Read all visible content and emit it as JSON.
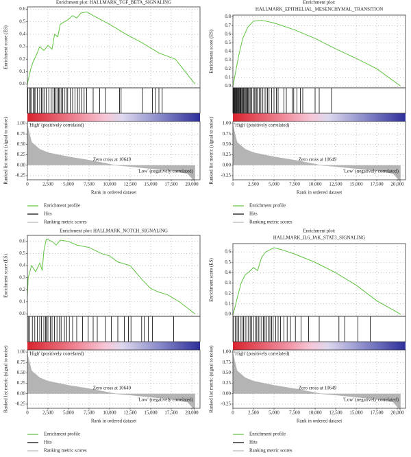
{
  "chart_data": [
    {
      "type": "gsea",
      "title": [
        "Enrichment plot: HALLMARK_TGF_BETA_SIGNALING"
      ],
      "ylabel": "Enrichment score (ES)",
      "y2label": "Ranked list metric (signal to noise)",
      "xlabel": "Rank in ordered dataset",
      "annotations": [
        "'High' (positively correlated)",
        "Zero cross at 10649",
        "'Low' (negatively correlated)"
      ],
      "xlim": [
        0,
        21000
      ],
      "xticks": [
        0,
        {
          "value": 2500,
          "label": "2,500"
        },
        {
          "value": 5000,
          "label": "5,000"
        },
        {
          "value": 7500,
          "label": "7,500"
        },
        {
          "value": 10000,
          "label": "10,000"
        },
        {
          "value": 12500,
          "label": "12,500"
        },
        {
          "value": 15000,
          "label": "15,000"
        },
        {
          "value": 17500,
          "label": "17,500"
        },
        {
          "value": 20000,
          "label": "20,000"
        }
      ],
      "ylim": [
        -0.03,
        0.62
      ],
      "yticks": [
        {
          "value": 0,
          "label": "0.0"
        },
        0.1,
        0.2,
        0.3,
        0.4,
        0.5,
        0.6
      ],
      "y2lim": [
        -0.35,
        1.05
      ],
      "y2ticks": [
        {
          "value": 1,
          "label": "1.00"
        },
        0.75,
        {
          "value": 0.5,
          "label": "0.50"
        },
        0.25,
        {
          "value": 0,
          "label": "0.00"
        },
        -0.25
      ],
      "grid": true,
      "series": [
        {
          "name": "Enrichment profile",
          "color": "#5cc33c",
          "x": [
            0,
            150,
            400,
            700,
            1000,
            1500,
            2000,
            2500,
            3000,
            3300,
            3700,
            4000,
            4500,
            5000,
            5500,
            6000,
            6500,
            7200,
            8000,
            10000,
            12000,
            14000,
            16000,
            18000,
            20400
          ],
          "values": [
            0,
            0.05,
            0.12,
            0.18,
            0.22,
            0.3,
            0.27,
            0.31,
            0.28,
            0.4,
            0.38,
            0.48,
            0.5,
            0.52,
            0.55,
            0.53,
            0.57,
            0.58,
            0.55,
            0.48,
            0.4,
            0.33,
            0.25,
            0.2,
            0
          ]
        },
        {
          "name": "Hits",
          "color": "#000000",
          "x": [
            50,
            200,
            350,
            500,
            700,
            850,
            1000,
            1200,
            1500,
            1700,
            1900,
            2100,
            2300,
            2600,
            2900,
            3100,
            3300,
            3400,
            3600,
            3800,
            3900,
            4100,
            4300,
            4500,
            4700,
            4900,
            5200,
            5500,
            5800,
            6100,
            6300,
            6600,
            6900,
            7200,
            8000,
            8800,
            9500,
            11200,
            11400,
            14000,
            15200,
            15600,
            16000,
            16400
          ]
        },
        {
          "name": "Ranking metric scores",
          "color": "#b4b4b4",
          "axis": "y2",
          "x": [
            0,
            500,
            1500,
            2500,
            5000,
            7500,
            10649,
            12500,
            15000,
            17500,
            19500,
            20400
          ],
          "values": [
            0.95,
            0.55,
            0.38,
            0.3,
            0.2,
            0.12,
            0,
            -0.03,
            -0.08,
            -0.13,
            -0.2,
            -0.4
          ]
        }
      ]
    },
    {
      "type": "gsea",
      "title": [
        "Enrichment plot:",
        "HALLMARK_EPITHELIAL_MESENCHYMAL_TRANSITION"
      ],
      "ylabel": "Enrichment score (ES)",
      "y2label": "Ranked list metric (signal to noise)",
      "xlabel": "Rank in ordered dataset",
      "annotations": [
        "'High' (positively correlated)",
        "Zero cross at 10649",
        "'Low' (negatively correlated)"
      ],
      "xlim": [
        0,
        21000
      ],
      "xticks": [
        0,
        {
          "value": 2500,
          "label": "2,500"
        },
        {
          "value": 5000,
          "label": "5,000"
        },
        {
          "value": 7500,
          "label": "7,500"
        },
        {
          "value": 10000,
          "label": "10,000"
        },
        {
          "value": 12500,
          "label": "12,500"
        },
        {
          "value": 15000,
          "label": "15,000"
        },
        {
          "value": 17500,
          "label": "17,500"
        },
        {
          "value": 20000,
          "label": "20,000"
        }
      ],
      "ylim": [
        -0.02,
        0.82
      ],
      "yticks": [
        {
          "value": 0,
          "label": "0.0"
        },
        0.1,
        0.2,
        0.3,
        0.4,
        0.5,
        0.6,
        0.7,
        0.8
      ],
      "y2lim": [
        -0.35,
        1.05
      ],
      "y2ticks": [
        {
          "value": 1,
          "label": "1.00"
        },
        0.75,
        {
          "value": 0.5,
          "label": "0.50"
        },
        0.25,
        {
          "value": 0,
          "label": "0.00"
        },
        -0.25
      ],
      "grid": true,
      "series": [
        {
          "name": "Enrichment profile",
          "color": "#5cc33c",
          "x": [
            0,
            300,
            700,
            1200,
            1800,
            2500,
            3500,
            5000,
            7500,
            10000,
            12500,
            15000,
            17500,
            20400
          ],
          "values": [
            0,
            0.15,
            0.35,
            0.55,
            0.68,
            0.75,
            0.76,
            0.73,
            0.65,
            0.55,
            0.43,
            0.32,
            0.2,
            0
          ]
        },
        {
          "name": "Hits",
          "color": "#000000",
          "x": [
            20,
            80,
            150,
            220,
            300,
            380,
            450,
            520,
            600,
            680,
            760,
            850,
            930,
            1000,
            1100,
            1200,
            1300,
            1400,
            1500,
            1600,
            1700,
            1800,
            1900,
            2000,
            2150,
            2300,
            2450,
            2600,
            2750,
            2900,
            3050,
            3200,
            3400,
            3600,
            3800,
            4000,
            4200,
            4400,
            4700,
            5000,
            5300,
            5500,
            6200,
            6500,
            7200,
            7400,
            7800,
            8200,
            8500,
            10000,
            10500,
            12000
          ]
        },
        {
          "name": "Ranking metric scores",
          "color": "#b4b4b4",
          "axis": "y2",
          "x": [
            0,
            500,
            1500,
            2500,
            5000,
            7500,
            10649,
            12500,
            15000,
            17500,
            19500,
            20400
          ],
          "values": [
            0.95,
            0.55,
            0.38,
            0.3,
            0.2,
            0.12,
            0,
            -0.03,
            -0.08,
            -0.13,
            -0.2,
            -0.4
          ]
        }
      ]
    },
    {
      "type": "gsea",
      "title": [
        "Enrichment plot: HALLMARK_NOTCH_SIGNALING"
      ],
      "ylabel": "Enrichment score (ES)",
      "y2label": "Ranked list metric (signal to noise)",
      "xlabel": "Rank in ordered dataset",
      "annotations": [
        "'High' (positively correlated)",
        "Zero cross at 10649",
        "'Low' (negatively correlated)"
      ],
      "xlim": [
        0,
        21000
      ],
      "xticks": [
        0,
        {
          "value": 2500,
          "label": "2,500"
        },
        {
          "value": 5000,
          "label": "5,000"
        },
        {
          "value": 7500,
          "label": "7,500"
        },
        {
          "value": 10000,
          "label": "10,000"
        },
        {
          "value": 12500,
          "label": "12,500"
        },
        {
          "value": 15000,
          "label": "15,000"
        },
        {
          "value": 17500,
          "label": "17,500"
        },
        {
          "value": 20000,
          "label": "20,000"
        }
      ],
      "ylim": [
        -0.02,
        0.65
      ],
      "yticks": [
        {
          "value": 0,
          "label": "0.0"
        },
        0.1,
        0.2,
        0.3,
        0.4,
        0.5,
        0.6
      ],
      "y2lim": [
        -0.35,
        1.05
      ],
      "y2ticks": [
        {
          "value": 1,
          "label": "1.00"
        },
        0.75,
        {
          "value": 0.5,
          "label": "0.50"
        },
        0.25,
        {
          "value": 0,
          "label": "0.00"
        },
        -0.25
      ],
      "grid": true,
      "series": [
        {
          "name": "Enrichment profile",
          "color": "#5cc33c",
          "x": [
            0,
            100,
            500,
            1000,
            1500,
            1800,
            2000,
            2300,
            3000,
            3500,
            4000,
            5000,
            6000,
            7500,
            9000,
            10000,
            11000,
            12500,
            14000,
            15000,
            16000,
            17000,
            18500,
            20400
          ],
          "values": [
            0.15,
            0.3,
            0.4,
            0.35,
            0.42,
            0.36,
            0.52,
            0.62,
            0.6,
            0.57,
            0.61,
            0.6,
            0.57,
            0.55,
            0.5,
            0.48,
            0.43,
            0.4,
            0.28,
            0.21,
            0.18,
            0.16,
            0.1,
            0
          ]
        },
        {
          "name": "Hits",
          "color": "#000000",
          "x": [
            100,
            300,
            600,
            900,
            1200,
            1500,
            1700,
            2000,
            2200,
            2300,
            2500,
            2800,
            3000,
            3300,
            3600,
            3900,
            4100,
            4500,
            4800,
            5100,
            5500,
            6000,
            6700,
            7400,
            8000,
            8500,
            9500,
            10200,
            11000,
            11800,
            12300,
            12600,
            13900,
            14200,
            14700,
            15200,
            17800
          ]
        },
        {
          "name": "Ranking metric scores",
          "color": "#b4b4b4",
          "axis": "y2",
          "x": [
            0,
            500,
            1500,
            2500,
            5000,
            7500,
            10649,
            12500,
            15000,
            17500,
            19500,
            20400
          ],
          "values": [
            0.95,
            0.55,
            0.38,
            0.3,
            0.2,
            0.12,
            0,
            -0.03,
            -0.08,
            -0.13,
            -0.2,
            -0.4
          ]
        }
      ]
    },
    {
      "type": "gsea",
      "title": [
        "Enrichment plot:",
        "HALLMARK_IL6_JAK_STAT3_SIGNALING"
      ],
      "ylabel": "Enrichment score (ES)",
      "y2label": "Ranked list metric (signal to noise)",
      "xlabel": "Rank in ordered dataset",
      "annotations": [
        "'High' (positively correlated)",
        "Zero cross at 10649",
        "'Low' (negatively correlated)"
      ],
      "xlim": [
        0,
        21000
      ],
      "xticks": [
        0,
        {
          "value": 2500,
          "label": "2,500"
        },
        {
          "value": 5000,
          "label": "5,000"
        },
        {
          "value": 7500,
          "label": "7,500"
        },
        {
          "value": 10000,
          "label": "10,000"
        },
        {
          "value": 12500,
          "label": "12,500"
        },
        {
          "value": 15000,
          "label": "15,000"
        },
        {
          "value": 17500,
          "label": "17,500"
        },
        {
          "value": 20000,
          "label": "20,000"
        }
      ],
      "ylim": [
        -0.02,
        0.68
      ],
      "yticks": [
        {
          "value": 0,
          "label": "0.0"
        },
        0.1,
        0.2,
        0.3,
        0.4,
        0.5,
        0.6
      ],
      "y2lim": [
        -0.35,
        1.05
      ],
      "y2ticks": [
        {
          "value": 1,
          "label": "1.00"
        },
        0.75,
        {
          "value": 0.5,
          "label": "0.50"
        },
        0.25,
        {
          "value": 0,
          "label": "0.00"
        },
        -0.25
      ],
      "grid": true,
      "series": [
        {
          "name": "Enrichment profile",
          "color": "#5cc33c",
          "x": [
            0,
            200,
            500,
            1000,
            1500,
            2000,
            2500,
            3000,
            3500,
            4000,
            4500,
            5000,
            6000,
            7500,
            10000,
            12500,
            15000,
            17500,
            20400
          ],
          "values": [
            0,
            0.05,
            0.15,
            0.3,
            0.38,
            0.41,
            0.45,
            0.42,
            0.55,
            0.6,
            0.62,
            0.64,
            0.62,
            0.58,
            0.5,
            0.4,
            0.28,
            0.13,
            0
          ]
        },
        {
          "name": "Hits",
          "color": "#000000",
          "x": [
            100,
            300,
            500,
            700,
            900,
            1100,
            1300,
            1500,
            1700,
            1900,
            2100,
            2300,
            2500,
            2700,
            2900,
            3100,
            3300,
            3500,
            3700,
            3900,
            4100,
            4300,
            4500,
            4700,
            4900,
            5200,
            5500,
            5800,
            6200,
            6600,
            7000,
            7600,
            8300,
            9200,
            10500,
            12900,
            13600,
            15200,
            16700
          ]
        },
        {
          "name": "Ranking metric scores",
          "color": "#b4b4b4",
          "axis": "y2",
          "x": [
            0,
            500,
            1500,
            2500,
            5000,
            7500,
            10649,
            12500,
            15000,
            17500,
            19500,
            20400
          ],
          "values": [
            0.95,
            0.55,
            0.38,
            0.3,
            0.2,
            0.12,
            0,
            -0.03,
            -0.08,
            -0.13,
            -0.2,
            -0.4
          ]
        }
      ]
    }
  ]
}
